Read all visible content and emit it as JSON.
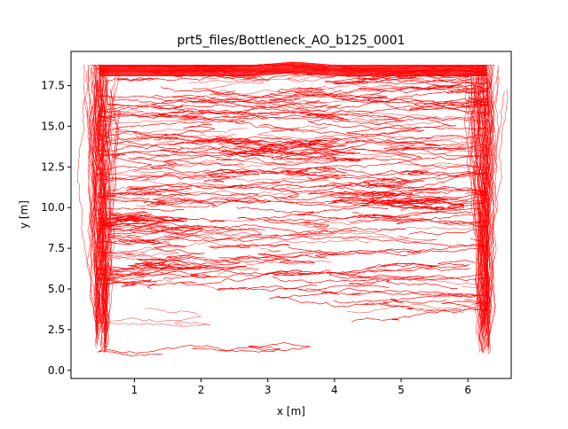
{
  "chart_data": {
    "type": "line",
    "title": "prt5_files/Bottleneck_AO_b125_0001",
    "xlabel": "x [m]",
    "ylabel": "y [m]",
    "xlim": [
      0.05,
      6.65
    ],
    "ylim": [
      -0.5,
      19.6
    ],
    "xticks": [
      1,
      2,
      3,
      4,
      5,
      6
    ],
    "yticks": [
      0.0,
      2.5,
      5.0,
      7.5,
      10.0,
      12.5,
      15.0,
      17.5
    ],
    "xtick_labels": [
      "1",
      "2",
      "3",
      "4",
      "5",
      "6"
    ],
    "ytick_labels": [
      "0.0",
      "2.5",
      "5.0",
      "7.5",
      "10.0",
      "12.5",
      "15.0",
      "17.5"
    ],
    "grid": false,
    "legend": "none",
    "line_color": "#ff0000",
    "trajectories": {
      "count": 400,
      "x_range": [
        0.45,
        6.3
      ],
      "y_range": [
        0.4,
        18.95
      ],
      "upper_wall_y": 18.75,
      "bulge_peak": {
        "x": 3.4,
        "y": 18.95
      },
      "dense_above_y": 5.0
    }
  }
}
